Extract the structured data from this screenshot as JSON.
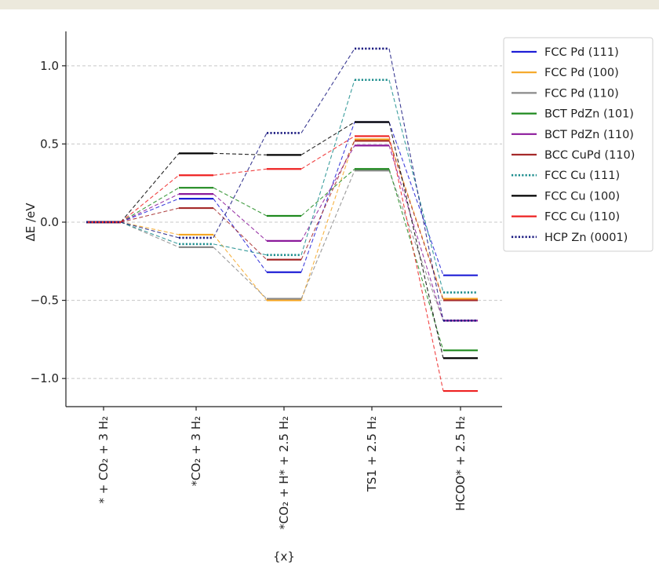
{
  "chart_data": {
    "type": "line",
    "title": "",
    "xlabel": "{x}",
    "ylabel": "ΔE /eV",
    "ylim": [
      -1.18,
      1.22
    ],
    "yticks": [
      1.0,
      0.5,
      0.0,
      -0.5,
      -1.0
    ],
    "ytick_labels": [
      "1.0",
      "0.5",
      "0.0",
      "−0.5",
      "−1.0"
    ],
    "grid": "horizontal dashed",
    "legend_position": "top-right outside",
    "categories": [
      "* + CO₂ + 3 H₂",
      "*CO₂  + 3 H₂",
      "*CO₂  + H* + 2.5 H₂",
      "TS1 + 2.5 H₂",
      "HCOO* + 2.5 H₂"
    ],
    "series": [
      {
        "name": "FCC Pd (111)",
        "color": "#1f1fd6",
        "style": "solid",
        "values": [
          0.0,
          0.15,
          -0.32,
          0.64,
          -0.34
        ]
      },
      {
        "name": "FCC Pd (100)",
        "color": "#f5a623",
        "style": "solid",
        "values": [
          0.0,
          -0.08,
          -0.5,
          0.53,
          -0.49
        ]
      },
      {
        "name": "FCC Pd (110)",
        "color": "#8a8a8a",
        "style": "solid",
        "values": [
          0.0,
          -0.16,
          -0.49,
          0.33,
          -0.63
        ]
      },
      {
        "name": "BCT PdZn (101)",
        "color": "#1f8a1f",
        "style": "solid",
        "values": [
          0.0,
          0.22,
          0.04,
          0.34,
          -0.82
        ]
      },
      {
        "name": "BCT PdZn (110)",
        "color": "#8b1a9b",
        "style": "solid",
        "values": [
          0.0,
          0.18,
          -0.12,
          0.49,
          -0.63
        ]
      },
      {
        "name": "BCC CuPd (110)",
        "color": "#a52a2a",
        "style": "solid",
        "values": [
          0.0,
          0.09,
          -0.24,
          0.52,
          -0.5
        ]
      },
      {
        "name": "FCC Cu (111)",
        "color": "#1a8c8c",
        "style": "dotted",
        "values": [
          0.0,
          -0.14,
          -0.21,
          0.91,
          -0.45
        ]
      },
      {
        "name": "FCC Cu (100)",
        "color": "#000000",
        "style": "solid",
        "values": [
          0.0,
          0.44,
          0.43,
          0.64,
          -0.87
        ]
      },
      {
        "name": "FCC Cu (110)",
        "color": "#ee2222",
        "style": "solid",
        "values": [
          0.0,
          0.3,
          0.34,
          0.55,
          -1.08
        ]
      },
      {
        "name": "HCP Zn (0001)",
        "color": "#1a1a80",
        "style": "dotted",
        "values": [
          0.0,
          -0.1,
          0.57,
          1.11,
          -0.63
        ]
      }
    ]
  }
}
